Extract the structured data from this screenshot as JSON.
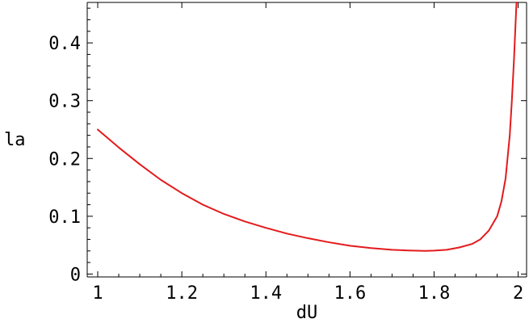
{
  "chart_data": {
    "type": "line",
    "title": "",
    "xlabel": "dU",
    "ylabel": "la",
    "xlim": [
      0.975,
      2.02
    ],
    "ylim": [
      -0.005,
      0.47
    ],
    "grid": false,
    "xticks": [
      {
        "value": 1,
        "label": "1"
      },
      {
        "value": 1.2,
        "label": "1.2"
      },
      {
        "value": 1.4,
        "label": "1.4"
      },
      {
        "value": 1.6,
        "label": "1.6"
      },
      {
        "value": 1.8,
        "label": "1.8"
      },
      {
        "value": 2,
        "label": "2"
      }
    ],
    "yticks": [
      {
        "value": 0,
        "label": "0"
      },
      {
        "value": 0.1,
        "label": "0.1"
      },
      {
        "value": 0.2,
        "label": "0.2"
      },
      {
        "value": 0.3,
        "label": "0.3"
      },
      {
        "value": 0.4,
        "label": "0.4"
      }
    ],
    "series": [
      {
        "color": "#e31a1c",
        "x": [
          1.0,
          1.05,
          1.1,
          1.15,
          1.2,
          1.25,
          1.3,
          1.35,
          1.4,
          1.45,
          1.5,
          1.55,
          1.6,
          1.65,
          1.7,
          1.75,
          1.78,
          1.8,
          1.83,
          1.86,
          1.89,
          1.91,
          1.93,
          1.95,
          1.96,
          1.97,
          1.98,
          1.985,
          1.99,
          1.993,
          1.996
        ],
        "y": [
          0.25,
          0.219,
          0.19,
          0.163,
          0.14,
          0.12,
          0.104,
          0.091,
          0.08,
          0.07,
          0.062,
          0.055,
          0.049,
          0.045,
          0.042,
          0.0405,
          0.04,
          0.0405,
          0.042,
          0.046,
          0.052,
          0.06,
          0.075,
          0.1,
          0.125,
          0.165,
          0.24,
          0.3,
          0.37,
          0.42,
          0.47
        ]
      }
    ]
  }
}
